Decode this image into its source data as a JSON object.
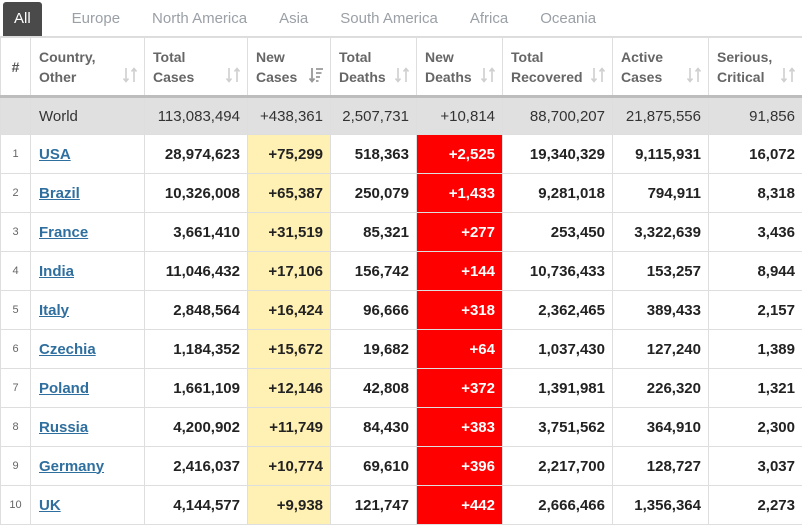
{
  "tabs": [
    "All",
    "Europe",
    "North America",
    "Asia",
    "South America",
    "Africa",
    "Oceania"
  ],
  "headers": {
    "rank": "#",
    "country_l1": "Country,",
    "country_l2": "Other",
    "total_cases_l1": "Total",
    "total_cases_l2": "Cases",
    "new_cases_l1": "New",
    "new_cases_l2": "Cases",
    "total_deaths_l1": "Total",
    "total_deaths_l2": "Deaths",
    "new_deaths_l1": "New",
    "new_deaths_l2": "Deaths",
    "total_recovered_l1": "Total",
    "total_recovered_l2": "Recovered",
    "active_cases_l1": "Active",
    "active_cases_l2": "Cases",
    "serious_l1": "Serious,",
    "serious_l2": "Critical"
  },
  "world": {
    "country": "World",
    "total_cases": "113,083,494",
    "new_cases": "+438,361",
    "total_deaths": "2,507,731",
    "new_deaths": "+10,814",
    "total_recovered": "88,700,207",
    "active_cases": "21,875,556",
    "serious": "91,856"
  },
  "rows": [
    {
      "rank": "1",
      "country": "USA",
      "total_cases": "28,974,623",
      "new_cases": "+75,299",
      "total_deaths": "518,363",
      "new_deaths": "+2,525",
      "total_recovered": "19,340,329",
      "active_cases": "9,115,931",
      "serious": "16,072"
    },
    {
      "rank": "2",
      "country": "Brazil",
      "total_cases": "10,326,008",
      "new_cases": "+65,387",
      "total_deaths": "250,079",
      "new_deaths": "+1,433",
      "total_recovered": "9,281,018",
      "active_cases": "794,911",
      "serious": "8,318"
    },
    {
      "rank": "3",
      "country": "France",
      "total_cases": "3,661,410",
      "new_cases": "+31,519",
      "total_deaths": "85,321",
      "new_deaths": "+277",
      "total_recovered": "253,450",
      "active_cases": "3,322,639",
      "serious": "3,436"
    },
    {
      "rank": "4",
      "country": "India",
      "total_cases": "11,046,432",
      "new_cases": "+17,106",
      "total_deaths": "156,742",
      "new_deaths": "+144",
      "total_recovered": "10,736,433",
      "active_cases": "153,257",
      "serious": "8,944"
    },
    {
      "rank": "5",
      "country": "Italy",
      "total_cases": "2,848,564",
      "new_cases": "+16,424",
      "total_deaths": "96,666",
      "new_deaths": "+318",
      "total_recovered": "2,362,465",
      "active_cases": "389,433",
      "serious": "2,157"
    },
    {
      "rank": "6",
      "country": "Czechia",
      "total_cases": "1,184,352",
      "new_cases": "+15,672",
      "total_deaths": "19,682",
      "new_deaths": "+64",
      "total_recovered": "1,037,430",
      "active_cases": "127,240",
      "serious": "1,389"
    },
    {
      "rank": "7",
      "country": "Poland",
      "total_cases": "1,661,109",
      "new_cases": "+12,146",
      "total_deaths": "42,808",
      "new_deaths": "+372",
      "total_recovered": "1,391,981",
      "active_cases": "226,320",
      "serious": "1,321"
    },
    {
      "rank": "8",
      "country": "Russia",
      "total_cases": "4,200,902",
      "new_cases": "+11,749",
      "total_deaths": "84,430",
      "new_deaths": "+383",
      "total_recovered": "3,751,562",
      "active_cases": "364,910",
      "serious": "2,300"
    },
    {
      "rank": "9",
      "country": "Germany",
      "total_cases": "2,416,037",
      "new_cases": "+10,774",
      "total_deaths": "69,610",
      "new_deaths": "+396",
      "total_recovered": "2,217,700",
      "active_cases": "128,727",
      "serious": "3,037"
    },
    {
      "rank": "10",
      "country": "UK",
      "total_cases": "4,144,577",
      "new_cases": "+9,938",
      "total_deaths": "121,747",
      "new_deaths": "+442",
      "total_recovered": "2,666,466",
      "active_cases": "1,356,364",
      "serious": "2,273"
    }
  ],
  "colors": {
    "new_cases_bg": "#fff0b3",
    "new_deaths_bg": "#ff0000",
    "country_link": "#2f6f9f",
    "world_row_bg": "#e0e0e0",
    "active_tab_bg": "#4a4a4a"
  },
  "icons": {
    "sort": "sort-arrows-icon",
    "sort_active": "sort-descending-icon"
  }
}
